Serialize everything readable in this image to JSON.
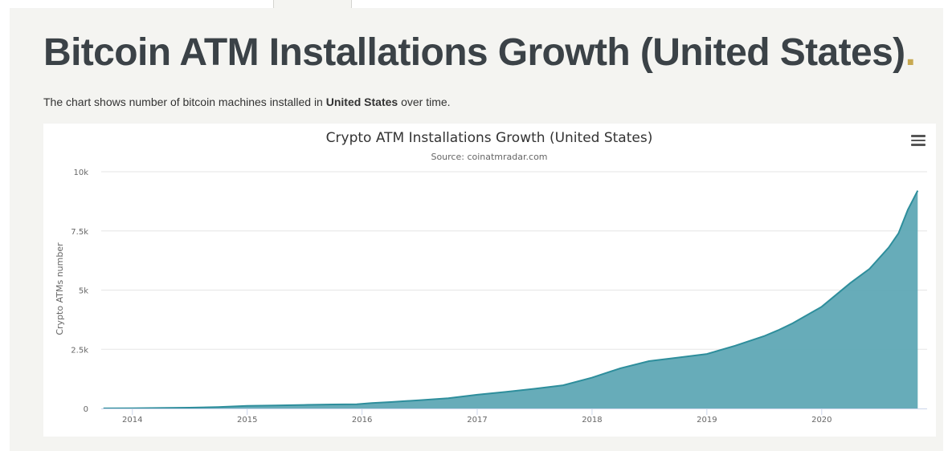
{
  "page": {
    "title": "Bitcoin ATM Installations Growth (United States)",
    "title_dot": ".",
    "description_prefix": "The chart shows number of bitcoin machines installed in ",
    "description_bold": "United States",
    "description_suffix": " over time."
  },
  "colors": {
    "title": "#3b4247",
    "accent_dot": "#c8a951",
    "area_fill": "#5fa8b5",
    "area_line": "#2e8e9c"
  },
  "icons": {
    "chart_menu": "hamburger-menu-icon"
  },
  "chart_data": {
    "type": "area",
    "title": "Crypto ATM Installations Growth (United States)",
    "subtitle": "Source: coinatmradar.com",
    "xlabel": "",
    "ylabel": "Crypto ATMs number",
    "x_ticks": [
      "2014",
      "2015",
      "2016",
      "2017",
      "2018",
      "2019",
      "2020"
    ],
    "y_ticks": [
      "0",
      "2.5k",
      "5k",
      "7.5k",
      "10k"
    ],
    "ylim": [
      0,
      10000
    ],
    "xlim": [
      "2013-09-24",
      "2020-12-01"
    ],
    "grid": true,
    "legend": false,
    "points": [
      {
        "x": "2013-10-01",
        "y": 5
      },
      {
        "x": "2014-01-01",
        "y": 10
      },
      {
        "x": "2014-04-01",
        "y": 20
      },
      {
        "x": "2014-07-01",
        "y": 35
      },
      {
        "x": "2014-10-01",
        "y": 60
      },
      {
        "x": "2015-01-01",
        "y": 110
      },
      {
        "x": "2015-04-01",
        "y": 130
      },
      {
        "x": "2015-07-01",
        "y": 150
      },
      {
        "x": "2015-10-01",
        "y": 170
      },
      {
        "x": "2015-12-15",
        "y": 180
      },
      {
        "x": "2016-02-01",
        "y": 230
      },
      {
        "x": "2016-04-01",
        "y": 270
      },
      {
        "x": "2016-07-01",
        "y": 350
      },
      {
        "x": "2016-10-01",
        "y": 430
      },
      {
        "x": "2017-01-01",
        "y": 580
      },
      {
        "x": "2017-04-01",
        "y": 700
      },
      {
        "x": "2017-07-01",
        "y": 830
      },
      {
        "x": "2017-10-01",
        "y": 980
      },
      {
        "x": "2018-01-01",
        "y": 1300
      },
      {
        "x": "2018-04-01",
        "y": 1700
      },
      {
        "x": "2018-07-01",
        "y": 2000
      },
      {
        "x": "2018-10-01",
        "y": 2150
      },
      {
        "x": "2019-01-01",
        "y": 2300
      },
      {
        "x": "2019-04-01",
        "y": 2650
      },
      {
        "x": "2019-07-01",
        "y": 3050
      },
      {
        "x": "2019-08-15",
        "y": 3300
      },
      {
        "x": "2019-10-01",
        "y": 3600
      },
      {
        "x": "2020-01-01",
        "y": 4300
      },
      {
        "x": "2020-04-01",
        "y": 5300
      },
      {
        "x": "2020-06-01",
        "y": 5900
      },
      {
        "x": "2020-08-01",
        "y": 6800
      },
      {
        "x": "2020-09-01",
        "y": 7400
      },
      {
        "x": "2020-10-01",
        "y": 8400
      },
      {
        "x": "2020-11-01",
        "y": 9200
      }
    ]
  }
}
